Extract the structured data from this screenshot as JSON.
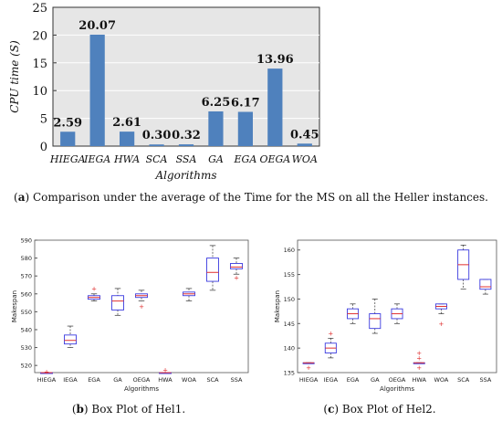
{
  "captions": {
    "a_letter": "a",
    "a_text": "Comparison under the average of the Time for the MS on all the Heller instances.",
    "b_letter": "b",
    "b_text": "Box Plot of Hel1.",
    "c_letter": "c",
    "c_text": "Box Plot of Hel2."
  },
  "colors": {
    "bar": "#4f81bd",
    "plot_bg": "#e6e6e6",
    "box": "#3a3adf",
    "median": "#e03030",
    "outlier": "#e03030",
    "whisker": "#333333"
  },
  "chart_data": [
    {
      "type": "bar",
      "title": "",
      "xlabel": "Algorithms",
      "ylabel": "CPU time (S)",
      "ylim": [
        0,
        25
      ],
      "yticks": [
        0,
        5,
        10,
        15,
        20,
        25
      ],
      "grid": true,
      "categories": [
        "HIEGA",
        "IEGA",
        "HWA",
        "SCA",
        "SSA",
        "GA",
        "EGA",
        "OEGA",
        "WOA"
      ],
      "values": [
        2.59,
        20.07,
        2.61,
        0.3,
        0.32,
        6.25,
        6.17,
        13.96,
        0.45
      ],
      "data_labels": [
        "2.59",
        "20.07",
        "2.61",
        "0.30",
        "0.32",
        "6.25",
        "6.17",
        "13.96",
        "0.45"
      ]
    },
    {
      "type": "box",
      "title": "",
      "xlabel": "Algorithms",
      "ylabel": "Makespan",
      "ylim": [
        516,
        590
      ],
      "yticks": [
        520,
        530,
        540,
        550,
        560,
        570,
        580,
        590
      ],
      "categories": [
        "HIEGA",
        "IEGA",
        "EGA",
        "GA",
        "OEGA",
        "HWA",
        "WOA",
        "SCA",
        "SSA"
      ],
      "boxes": [
        {
          "min": 516,
          "q1": 516,
          "median": 516,
          "q3": 516,
          "max": 516,
          "outliers": [
            516.5
          ]
        },
        {
          "min": 530,
          "q1": 532,
          "median": 534,
          "q3": 537,
          "max": 542,
          "outliers": []
        },
        {
          "min": 556,
          "q1": 557,
          "median": 558,
          "q3": 559,
          "max": 560,
          "outliers": [
            563
          ]
        },
        {
          "min": 548,
          "q1": 551,
          "median": 556,
          "q3": 559,
          "max": 563,
          "outliers": []
        },
        {
          "min": 556,
          "q1": 558,
          "median": 559,
          "q3": 560,
          "max": 562,
          "outliers": [
            553
          ]
        },
        {
          "min": 516,
          "q1": 516,
          "median": 516,
          "q3": 516,
          "max": 516,
          "outliers": [
            517.5
          ]
        },
        {
          "min": 556,
          "q1": 559,
          "median": 560,
          "q3": 561,
          "max": 563,
          "outliers": []
        },
        {
          "min": 562,
          "q1": 567,
          "median": 572,
          "q3": 580,
          "max": 587,
          "outliers": []
        },
        {
          "min": 571,
          "q1": 574,
          "median": 575,
          "q3": 577,
          "max": 580,
          "outliers": [
            569
          ]
        }
      ]
    },
    {
      "type": "box",
      "title": "",
      "xlabel": "Algorithms",
      "ylabel": "Makespan",
      "ylim": [
        135,
        162
      ],
      "yticks": [
        135,
        140,
        145,
        150,
        155,
        160
      ],
      "categories": [
        "HIEGA",
        "IEGA",
        "EGA",
        "GA",
        "OEGA",
        "HWA",
        "WOA",
        "SCA",
        "SSA"
      ],
      "boxes": [
        {
          "min": 137,
          "q1": 137,
          "median": 137,
          "q3": 137,
          "max": 137,
          "outliers": [
            136
          ]
        },
        {
          "min": 138,
          "q1": 139,
          "median": 140,
          "q3": 141,
          "max": 142,
          "outliers": [
            143
          ]
        },
        {
          "min": 145,
          "q1": 146,
          "median": 147,
          "q3": 148,
          "max": 149,
          "outliers": []
        },
        {
          "min": 143,
          "q1": 144,
          "median": 146,
          "q3": 147,
          "max": 150,
          "outliers": []
        },
        {
          "min": 145,
          "q1": 146,
          "median": 147,
          "q3": 148,
          "max": 149,
          "outliers": []
        },
        {
          "min": 137,
          "q1": 137,
          "median": 137,
          "q3": 137,
          "max": 137,
          "outliers": [
            136,
            138,
            139
          ]
        },
        {
          "min": 147,
          "q1": 148,
          "median": 148.5,
          "q3": 149,
          "max": 149,
          "outliers": [
            145
          ]
        },
        {
          "min": 152,
          "q1": 154,
          "median": 157,
          "q3": 160,
          "max": 161,
          "outliers": []
        },
        {
          "min": 151,
          "q1": 152,
          "median": 152.5,
          "q3": 154,
          "max": 154,
          "outliers": []
        }
      ]
    }
  ]
}
